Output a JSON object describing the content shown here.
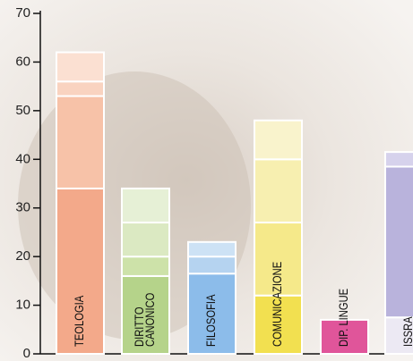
{
  "chart_data": {
    "type": "stacked-bar",
    "ylim": [
      0,
      70
    ],
    "yticks": [
      0,
      10,
      20,
      30,
      40,
      50,
      60,
      70
    ],
    "bars": [
      {
        "label": [
          "TEOLOGIA"
        ],
        "values": [
          34,
          19,
          3,
          6
        ],
        "colors": [
          "#f3a98a",
          "#f7c2a8",
          "#f9d3c0",
          "#fbe0d2"
        ]
      },
      {
        "label": [
          "DIRITTO",
          "CANONICO"
        ],
        "values": [
          16,
          4,
          7,
          7
        ],
        "colors": [
          "#b5d38a",
          "#cde2a9",
          "#dbe9c2",
          "#e6f0d6"
        ]
      },
      {
        "label": [
          "FILOSOFIA"
        ],
        "values": [
          16.5,
          3.5,
          3
        ],
        "colors": [
          "#8cbcea",
          "#b5d3f0",
          "#cde2f5"
        ]
      },
      {
        "label": [
          "COMUNICAZIONE"
        ],
        "values": [
          12,
          15,
          13,
          8
        ],
        "colors": [
          "#f2e050",
          "#f5e98a",
          "#f7efb0",
          "#f9f3cc"
        ]
      },
      {
        "label": [
          "DIP. LINGUE"
        ],
        "values": [
          7
        ],
        "colors": [
          "#e0559a"
        ]
      },
      {
        "label": [
          "ISSRA"
        ],
        "values": [
          7.5,
          31,
          3
        ],
        "colors": [
          "#ece9f3",
          "#b9b3dc",
          "#d6d2ec"
        ]
      }
    ]
  }
}
